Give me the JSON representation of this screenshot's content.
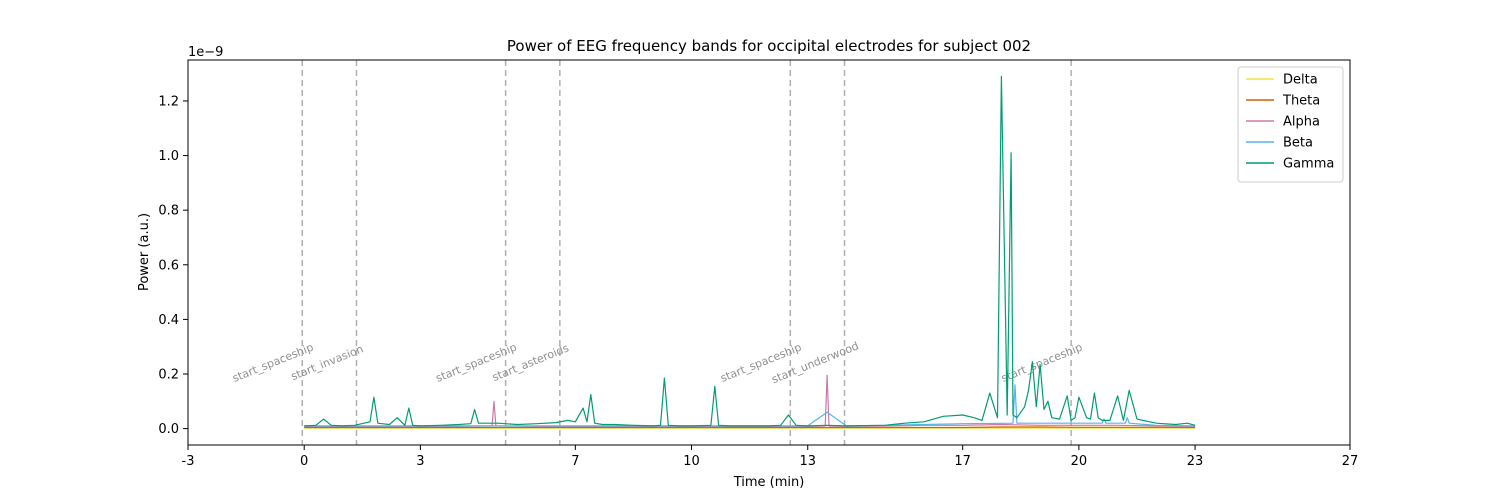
{
  "chart_data": {
    "type": "line",
    "title": "Power of EEG frequency bands for occipital electrodes for subject 002",
    "xlabel": "Time (min)",
    "ylabel": "Power (a.u.)",
    "y_offset_text": "1e−9",
    "xlim": [
      -3,
      27
    ],
    "ylim": [
      -0.06,
      1.35
    ],
    "x_ticks": [
      -3,
      0,
      3,
      7,
      10,
      13,
      17,
      20,
      23,
      27
    ],
    "y_ticks": [
      0.0,
      0.2,
      0.4,
      0.6,
      0.8,
      1.0,
      1.2
    ],
    "grid": false,
    "legend_placement": "top-right",
    "events": [
      {
        "x": -0.05,
        "label": "start_spaceship"
      },
      {
        "x": 1.35,
        "label": "start_invasion"
      },
      {
        "x": 5.2,
        "label": "start_spaceship"
      },
      {
        "x": 6.6,
        "label": "start_asteroids"
      },
      {
        "x": 12.55,
        "label": "start_spaceship"
      },
      {
        "x": 13.95,
        "label": "start_underwood"
      },
      {
        "x": 19.8,
        "label": "start_spaceship"
      }
    ],
    "series": [
      {
        "name": "Delta",
        "color": "#f0e442",
        "x": [
          0,
          1,
          2,
          3,
          4,
          5,
          6,
          7,
          8,
          9,
          10,
          11,
          12,
          13,
          14,
          15,
          16,
          17,
          18,
          19,
          20,
          21,
          22,
          23
        ],
        "y": [
          0.002,
          0.002,
          0.002,
          0.002,
          0.002,
          0.002,
          0.002,
          0.002,
          0.002,
          0.002,
          0.002,
          0.002,
          0.002,
          0.002,
          0.002,
          0.002,
          0.002,
          0.002,
          0.002,
          0.002,
          0.002,
          0.002,
          0.002,
          0.002
        ]
      },
      {
        "name": "Theta",
        "color": "#d55e00",
        "x": [
          0,
          1,
          2,
          3,
          4,
          5,
          6,
          7,
          8,
          9,
          10,
          11,
          12,
          13,
          14,
          15,
          16,
          17,
          18,
          19,
          20,
          21,
          22,
          23
        ],
        "y": [
          0.004,
          0.004,
          0.004,
          0.004,
          0.004,
          0.004,
          0.004,
          0.004,
          0.004,
          0.004,
          0.004,
          0.004,
          0.004,
          0.004,
          0.004,
          0.004,
          0.004,
          0.004,
          0.006,
          0.006,
          0.005,
          0.005,
          0.005,
          0.004
        ]
      },
      {
        "name": "Alpha",
        "color": "#cc79a7",
        "x": [
          0,
          1,
          2,
          3,
          4,
          4.85,
          4.9,
          4.95,
          6,
          7,
          8,
          9,
          10,
          11,
          12,
          13,
          13.45,
          13.5,
          13.55,
          14,
          15,
          16,
          17,
          18,
          19,
          20,
          21,
          22,
          23
        ],
        "y": [
          0.008,
          0.008,
          0.008,
          0.008,
          0.008,
          0.01,
          0.1,
          0.01,
          0.008,
          0.008,
          0.008,
          0.008,
          0.008,
          0.008,
          0.008,
          0.008,
          0.01,
          0.195,
          0.01,
          0.008,
          0.01,
          0.012,
          0.012,
          0.015,
          0.012,
          0.012,
          0.012,
          0.01,
          0.008
        ]
      },
      {
        "name": "Beta",
        "color": "#56b4e9",
        "x": [
          0,
          1,
          2,
          3,
          4,
          5,
          6,
          7,
          8,
          9,
          10,
          11,
          12,
          13,
          13.5,
          14,
          15,
          16,
          17,
          18.3,
          18.35,
          18.4,
          19,
          20,
          20.6,
          20.65,
          20.7,
          21,
          21.2,
          21.25,
          21.3,
          22,
          23
        ],
        "y": [
          0.01,
          0.01,
          0.01,
          0.01,
          0.01,
          0.01,
          0.01,
          0.01,
          0.01,
          0.01,
          0.01,
          0.01,
          0.01,
          0.01,
          0.06,
          0.01,
          0.012,
          0.015,
          0.018,
          0.02,
          0.16,
          0.02,
          0.02,
          0.02,
          0.02,
          0.035,
          0.02,
          0.02,
          0.02,
          0.04,
          0.02,
          0.012,
          0.01
        ]
      },
      {
        "name": "Gamma",
        "color": "#009e73",
        "x": [
          0,
          0.3,
          0.5,
          0.7,
          1.0,
          1.3,
          1.7,
          1.8,
          1.9,
          2.2,
          2.4,
          2.6,
          2.7,
          2.8,
          3.0,
          3.5,
          4.0,
          4.3,
          4.4,
          4.5,
          5.0,
          5.5,
          6.0,
          6.5,
          6.8,
          7.0,
          7.2,
          7.3,
          7.4,
          7.5,
          7.7,
          8.0,
          8.5,
          9.0,
          9.2,
          9.3,
          9.4,
          9.7,
          10.0,
          10.5,
          10.6,
          10.7,
          11.0,
          12.0,
          12.3,
          12.5,
          12.7,
          13.0,
          13.5,
          14.0,
          15.0,
          15.5,
          16.0,
          16.5,
          17.0,
          17.3,
          17.5,
          17.7,
          17.9,
          18.0,
          18.15,
          18.25,
          18.3,
          18.4,
          18.5,
          18.6,
          18.7,
          18.8,
          18.9,
          19.0,
          19.1,
          19.2,
          19.3,
          19.5,
          19.7,
          19.8,
          19.9,
          20.0,
          20.2,
          20.3,
          20.4,
          20.5,
          20.6,
          20.8,
          21.0,
          21.15,
          21.3,
          21.5,
          22.0,
          22.5,
          22.8,
          23.0
        ],
        "y": [
          0.01,
          0.012,
          0.035,
          0.012,
          0.01,
          0.012,
          0.025,
          0.115,
          0.02,
          0.015,
          0.04,
          0.012,
          0.075,
          0.012,
          0.01,
          0.012,
          0.015,
          0.018,
          0.07,
          0.02,
          0.02,
          0.015,
          0.018,
          0.022,
          0.03,
          0.025,
          0.075,
          0.025,
          0.125,
          0.02,
          0.015,
          0.015,
          0.012,
          0.01,
          0.012,
          0.185,
          0.012,
          0.01,
          0.01,
          0.012,
          0.155,
          0.012,
          0.01,
          0.01,
          0.012,
          0.05,
          0.012,
          0.01,
          0.012,
          0.01,
          0.012,
          0.02,
          0.025,
          0.045,
          0.05,
          0.04,
          0.03,
          0.13,
          0.04,
          1.29,
          0.05,
          1.01,
          0.05,
          0.04,
          0.06,
          0.08,
          0.14,
          0.245,
          0.08,
          0.235,
          0.07,
          0.1,
          0.04,
          0.035,
          0.12,
          0.03,
          0.04,
          0.115,
          0.04,
          0.035,
          0.13,
          0.04,
          0.03,
          0.03,
          0.12,
          0.03,
          0.14,
          0.035,
          0.02,
          0.015,
          0.02,
          0.012
        ]
      }
    ]
  }
}
